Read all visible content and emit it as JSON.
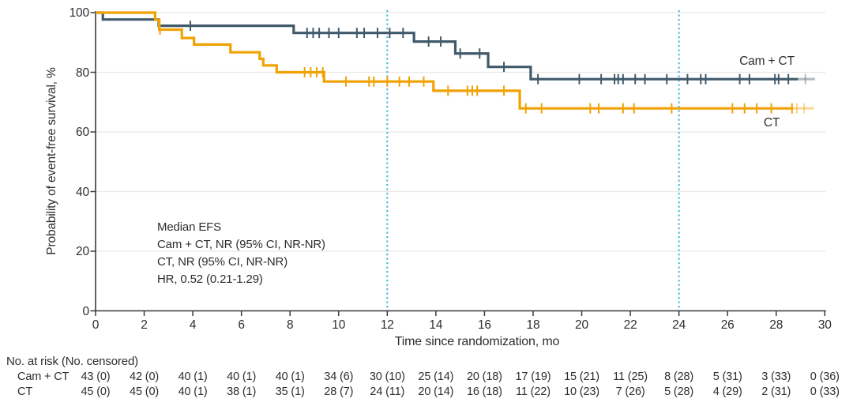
{
  "chart_data": {
    "type": "line",
    "subtype": "kaplan-meier-step",
    "title": "",
    "xlabel": "Time since randomization, mo",
    "ylabel": "Probability of event-free survival, %",
    "xlim": [
      0,
      30
    ],
    "ylim": [
      0,
      100
    ],
    "x_ticks": [
      0,
      2,
      4,
      6,
      8,
      10,
      12,
      14,
      16,
      18,
      20,
      22,
      24,
      26,
      28,
      30
    ],
    "y_ticks": [
      0,
      20,
      40,
      60,
      80,
      100
    ],
    "grid": "horizontal",
    "legend_position": "labels-on-curves",
    "reference_lines_x": [
      12,
      24
    ],
    "reference_line_color": "#3db5e5",
    "grid_color": "#e8e8e5",
    "axis_color": "#3a3a3a",
    "text_color": "#2e2e2e",
    "annotation": {
      "lines": [
        "Median EFS",
        "Cam + CT, NR (95% CI, NR-NR)",
        "CT, NR (95% CI, NR-NR)",
        "HR, 0.52 (0.21-1.29)"
      ]
    },
    "series": [
      {
        "name": "Cam + CT",
        "color": "#415a6b",
        "steps": [
          [
            0,
            100
          ],
          [
            0.3,
            97.7
          ],
          [
            2.6,
            95.6
          ],
          [
            8.15,
            93.2
          ],
          [
            13.1,
            90.3
          ],
          [
            14.8,
            86.3
          ],
          [
            16.15,
            81.8
          ],
          [
            17.9,
            77.7
          ]
        ],
        "end_x": 28.9,
        "fade_end_x": 29.6,
        "censors": [
          3.9,
          8.7,
          8.95,
          9.2,
          9.6,
          10.0,
          10.75,
          11.05,
          11.6,
          12.1,
          12.65,
          13.7,
          14.2,
          15.0,
          15.8,
          16.8,
          18.2,
          19.9,
          20.8,
          21.35,
          21.5,
          21.7,
          22.2,
          22.6,
          23.5,
          24.35,
          24.9,
          25.1,
          26.5,
          26.9,
          27.95,
          28.1,
          28.5
        ],
        "fade_censors": [
          29.2
        ]
      },
      {
        "name": "CT",
        "color": "#f0a202",
        "steps": [
          [
            0,
            100
          ],
          [
            2.45,
            97.6
          ],
          [
            2.62,
            94.3
          ],
          [
            3.55,
            91.5
          ],
          [
            4.05,
            89.3
          ],
          [
            5.55,
            86.7
          ],
          [
            6.75,
            84.5
          ],
          [
            6.9,
            82.3
          ],
          [
            7.45,
            80.0
          ],
          [
            9.4,
            76.9
          ],
          [
            13.9,
            73.8
          ],
          [
            17.45,
            67.9
          ]
        ],
        "end_x": 28.7,
        "fade_end_x": 29.55,
        "censors": [
          2.65,
          8.6,
          8.85,
          9.1,
          9.35,
          10.3,
          11.25,
          11.45,
          12.0,
          12.5,
          12.9,
          13.5,
          14.5,
          15.3,
          15.5,
          15.7,
          16.8,
          17.7,
          18.35,
          20.35,
          20.7,
          21.7,
          22.15,
          23.7,
          26.2,
          26.7,
          27.2,
          27.8,
          28.65
        ],
        "fade_censors": [
          28.85,
          29.15
        ]
      }
    ],
    "risk_table": {
      "header": "No. at risk (No. censored)",
      "time_points": [
        0,
        2,
        4,
        6,
        8,
        10,
        12,
        14,
        16,
        18,
        20,
        22,
        24,
        26,
        28,
        30
      ],
      "rows": [
        {
          "label": "Cam + CT",
          "values": [
            "43 (0)",
            "42 (0)",
            "40 (1)",
            "40 (1)",
            "40 (1)",
            "34 (6)",
            "30 (10)",
            "25 (14)",
            "20 (18)",
            "17 (19)",
            "15 (21)",
            "11 (25)",
            "8 (28)",
            "5 (31)",
            "3 (33)",
            "0 (36)"
          ]
        },
        {
          "label": "CT",
          "values": [
            "45 (0)",
            "45 (0)",
            "40 (1)",
            "38 (1)",
            "35 (1)",
            "28 (7)",
            "24 (11)",
            "20 (14)",
            "16 (18)",
            "11 (22)",
            "10 (23)",
            "7 (26)",
            "5 (28)",
            "4 (29)",
            "2 (31)",
            "0 (33)"
          ]
        }
      ]
    }
  }
}
